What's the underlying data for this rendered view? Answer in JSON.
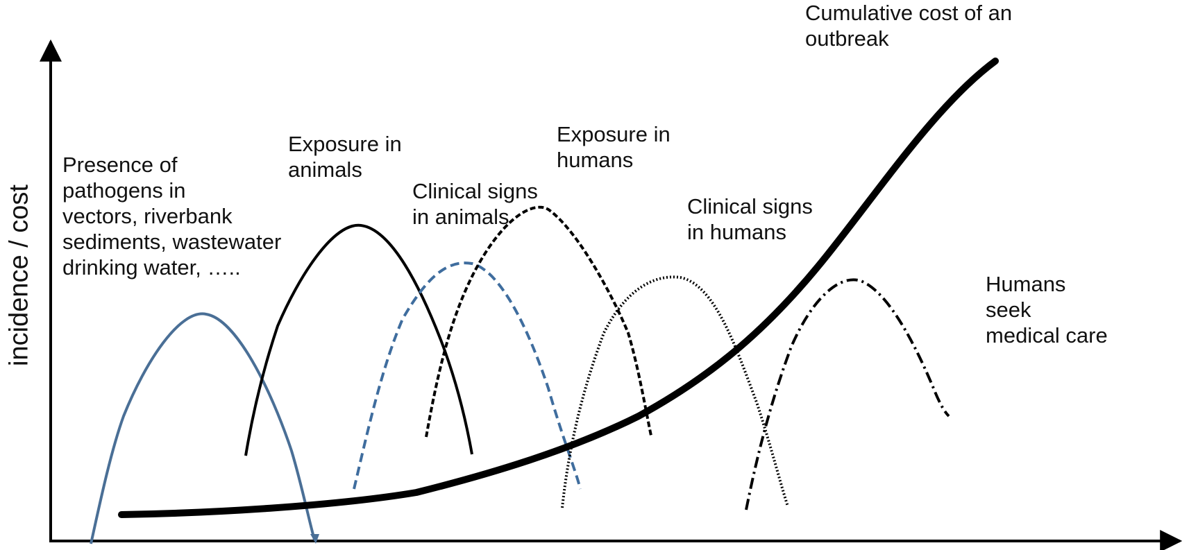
{
  "diagram": {
    "y_axis_label": "incidence / cost",
    "labels": {
      "pathogens": [
        "Presence of",
        "pathogens in",
        "vectors, riverbank",
        "sediments, wastewater",
        "drinking water, ….."
      ],
      "exposure_animals": [
        "Exposure in",
        "animals"
      ],
      "clinical_animals": [
        "Clinical signs",
        "in animals"
      ],
      "exposure_humans": [
        "Exposure in",
        "humans"
      ],
      "clinical_humans": [
        "Clinical signs",
        "in humans"
      ],
      "humans_care": [
        "Humans",
        "seek",
        "medical care"
      ],
      "cost": [
        "Cumulative cost of an",
        "outbreak"
      ]
    },
    "colors": {
      "axis": "#000000",
      "pathogen_curve": "#4a6f96",
      "clinical_animals_curve": "#3f6d9e",
      "black_curves": "#000000"
    },
    "curve_styles": {
      "pathogens": "solid",
      "exposure_animals": "solid",
      "clinical_animals": "dashed",
      "exposure_humans": "dashed",
      "clinical_humans": "dotted",
      "humans_care": "dash-dot",
      "cost": "thick-solid"
    }
  }
}
